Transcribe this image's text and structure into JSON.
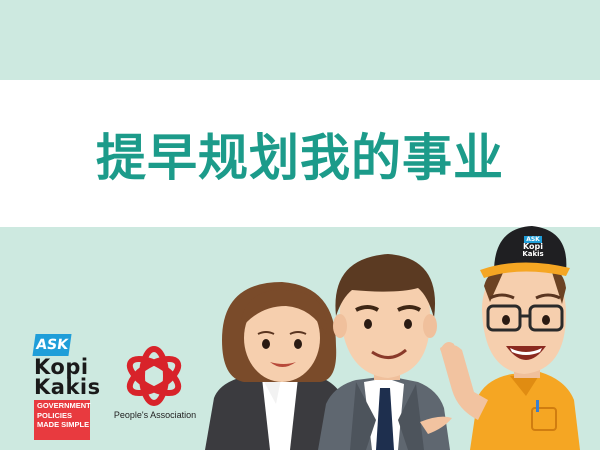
{
  "banner": {
    "title": "提早规划我的事业"
  },
  "logos": {
    "ask_kopi_kakis": {
      "ask": "ASK",
      "line1": "Kopi",
      "line2": "Kakis",
      "tagline": [
        "GOVERNMENT",
        "POLICIES",
        "MADE SIMPLE"
      ]
    },
    "peoples_association": {
      "name": "People's Association"
    },
    "cap": {
      "ask": "ASK",
      "line1": "Kopi",
      "line2": "Kakis"
    }
  },
  "colors": {
    "background": "#cde9e0",
    "banner": "#ffffff",
    "title": "#1c9b8a",
    "ask_blue": "#1f9ed9",
    "tag_red": "#e83a3f",
    "pa_red": "#d8232a",
    "shirt_orange": "#f5a623"
  },
  "characters": [
    "woman-in-suit",
    "man-in-suit",
    "man-with-cap-and-glasses"
  ]
}
